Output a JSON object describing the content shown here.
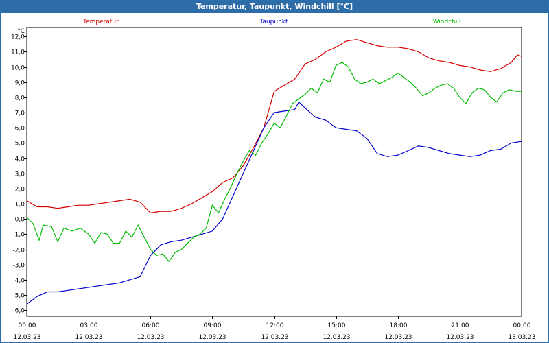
{
  "window": {
    "title": "Temperatur, Taupunkt, Windchill [°C]"
  },
  "chart_data": {
    "type": "line",
    "title": "Temperatur, Taupunkt, Windchill [°C]",
    "ylabel": "°C",
    "ylim": [
      -6.4,
      12.6
    ],
    "yticks": [
      "12,0",
      "11,0",
      "10,0",
      "9,0",
      "8,0",
      "7,0",
      "6,0",
      "5,0",
      "4,0",
      "3,0",
      "2,0",
      "1,0",
      "0,0",
      "-1,0",
      "-2,0",
      "-3,0",
      "-4,0",
      "-5,0",
      "-6,0"
    ],
    "ytick_values": [
      12,
      11,
      10,
      9,
      8,
      7,
      6,
      5,
      4,
      3,
      2,
      1,
      0,
      -1,
      -2,
      -3,
      -4,
      -5,
      -6
    ],
    "xlim": [
      0,
      24
    ],
    "xticks": [
      {
        "hour": 0,
        "time": "00:00",
        "date": "12.03.23"
      },
      {
        "hour": 3,
        "time": "03:00",
        "date": "12.03.23"
      },
      {
        "hour": 6,
        "time": "06:00",
        "date": "12.03.23"
      },
      {
        "hour": 9,
        "time": "09:00",
        "date": "12.03.23"
      },
      {
        "hour": 12,
        "time": "12:00",
        "date": "12.03.23"
      },
      {
        "hour": 15,
        "time": "15:00",
        "date": "12.03.23"
      },
      {
        "hour": 18,
        "time": "18:00",
        "date": "12.03.23"
      },
      {
        "hour": 21,
        "time": "21:00",
        "date": "12.03.23"
      },
      {
        "hour": 24,
        "time": "00:00",
        "date": "13.03.23"
      }
    ],
    "grid": true,
    "series": [
      {
        "name": "Temperatur",
        "color": "#d40000",
        "x": [
          0,
          0.5,
          1,
          1.5,
          2,
          2.5,
          3,
          3.5,
          4,
          4.5,
          5,
          5.5,
          6,
          6.5,
          7,
          7.5,
          8,
          8.5,
          9,
          9.5,
          10,
          10.5,
          11,
          11.5,
          12,
          12.5,
          13,
          13.5,
          14,
          14.5,
          15,
          15.5,
          16,
          16.5,
          17,
          17.5,
          18,
          18.5,
          19,
          19.5,
          20,
          20.5,
          21,
          21.5,
          22,
          22.5,
          23,
          23.5,
          23.8,
          24
        ],
        "values": [
          1.2,
          0.8,
          0.8,
          0.7,
          0.8,
          0.9,
          0.9,
          1.0,
          1.1,
          1.2,
          1.3,
          1.1,
          0.4,
          0.5,
          0.5,
          0.7,
          1.0,
          1.4,
          1.8,
          2.4,
          2.7,
          3.5,
          4.7,
          6.0,
          8.4,
          8.8,
          9.2,
          10.2,
          10.5,
          11.0,
          11.3,
          11.7,
          11.8,
          11.6,
          11.4,
          11.3,
          11.3,
          11.2,
          11.0,
          10.6,
          10.4,
          10.3,
          10.1,
          10.0,
          9.8,
          9.7,
          9.9,
          10.3,
          10.8,
          10.7
        ]
      },
      {
        "name": "Taupunkt",
        "color": "#0000cc",
        "x": [
          0,
          0.5,
          1,
          1.5,
          2,
          2.5,
          3,
          3.5,
          4,
          4.5,
          5,
          5.5,
          6,
          6.5,
          7,
          7.5,
          8,
          8.5,
          9,
          9.5,
          10,
          10.5,
          11,
          11.5,
          12,
          12.5,
          13,
          13.2,
          13.5,
          14,
          14.5,
          15,
          15.5,
          16,
          16.5,
          17,
          17.5,
          18,
          18.5,
          19,
          19.5,
          20,
          20.5,
          21,
          21.5,
          22,
          22.5,
          23,
          23.5,
          24
        ],
        "values": [
          -5.6,
          -5.1,
          -4.8,
          -4.8,
          -4.7,
          -4.6,
          -4.5,
          -4.4,
          -4.3,
          -4.2,
          -4.0,
          -3.8,
          -2.4,
          -1.7,
          -1.5,
          -1.4,
          -1.2,
          -1.0,
          -0.8,
          0.0,
          1.5,
          3.0,
          4.5,
          6.0,
          7.0,
          7.1,
          7.2,
          7.7,
          7.3,
          6.7,
          6.5,
          6.0,
          5.9,
          5.8,
          5.3,
          4.3,
          4.1,
          4.2,
          4.5,
          4.8,
          4.7,
          4.5,
          4.3,
          4.2,
          4.1,
          4.2,
          4.5,
          4.6,
          5.0,
          5.1
        ]
      },
      {
        "name": "Windchill",
        "color": "#00bb00",
        "x": [
          0,
          0.3,
          0.6,
          0.8,
          1.2,
          1.5,
          1.8,
          2.2,
          2.6,
          3.0,
          3.3,
          3.6,
          3.9,
          4.2,
          4.5,
          4.8,
          5.1,
          5.4,
          5.7,
          6.0,
          6.3,
          6.6,
          6.9,
          7.2,
          7.5,
          7.8,
          8.1,
          8.4,
          8.7,
          9.0,
          9.3,
          9.6,
          9.9,
          10.2,
          10.5,
          10.8,
          11.1,
          11.4,
          11.7,
          12.0,
          12.3,
          12.6,
          12.9,
          13.2,
          13.5,
          13.8,
          14.1,
          14.4,
          14.7,
          15.0,
          15.3,
          15.6,
          15.9,
          16.2,
          16.5,
          16.8,
          17.1,
          17.4,
          17.7,
          18.0,
          18.3,
          18.6,
          18.9,
          19.2,
          19.5,
          19.8,
          20.1,
          20.4,
          20.7,
          21.0,
          21.3,
          21.6,
          21.9,
          22.2,
          22.5,
          22.8,
          23.1,
          23.4,
          23.7,
          24.0
        ],
        "values": [
          0.1,
          -0.3,
          -1.4,
          -0.4,
          -0.5,
          -1.5,
          -0.6,
          -0.8,
          -0.6,
          -1.0,
          -1.6,
          -0.9,
          -1.0,
          -1.6,
          -1.6,
          -0.8,
          -1.2,
          -0.4,
          -1.2,
          -2.0,
          -2.4,
          -2.3,
          -2.8,
          -2.2,
          -2.0,
          -1.6,
          -1.2,
          -1.0,
          -0.6,
          0.9,
          0.4,
          1.3,
          2.1,
          3.0,
          3.8,
          4.5,
          4.2,
          5.0,
          5.6,
          6.3,
          6.0,
          6.8,
          7.6,
          7.9,
          8.2,
          8.6,
          8.3,
          9.2,
          9.0,
          10.1,
          10.3,
          10.0,
          9.2,
          8.9,
          9.0,
          9.2,
          8.9,
          9.1,
          9.3,
          9.6,
          9.3,
          9.0,
          8.6,
          8.1,
          8.3,
          8.6,
          8.8,
          8.9,
          8.6,
          8.0,
          7.6,
          8.3,
          8.6,
          8.5,
          8.0,
          7.7,
          8.3,
          8.5,
          8.4,
          8.4
        ]
      }
    ]
  }
}
